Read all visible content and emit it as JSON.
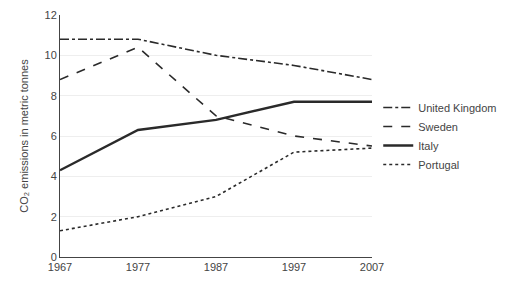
{
  "chart_data": {
    "type": "line",
    "ylabel": "CO₂ emissions in metric tonnes",
    "x": [
      1967,
      1977,
      1987,
      1997,
      2007
    ],
    "series": [
      {
        "name": "United Kingdom",
        "color": "#2a2a2a",
        "line_style": "dashdot",
        "values": [
          10.8,
          10.8,
          10.0,
          9.5,
          8.8
        ]
      },
      {
        "name": "Sweden",
        "color": "#2a2a2a",
        "line_style": "dash",
        "values": [
          8.8,
          10.4,
          7.0,
          6.0,
          5.5
        ]
      },
      {
        "name": "Italy",
        "color": "#2a2a2a",
        "line_style": "solid",
        "values": [
          4.3,
          6.3,
          6.8,
          7.7,
          7.7
        ]
      },
      {
        "name": "Portugal",
        "color": "#2a2a2a",
        "line_style": "dot",
        "values": [
          1.3,
          2.0,
          3.0,
          5.2,
          5.4
        ]
      }
    ],
    "xlim": [
      1967,
      2007
    ],
    "xticks": [
      1967,
      1977,
      1987,
      1997,
      2007
    ],
    "ylim": [
      0,
      12
    ],
    "yticks": [
      0,
      2,
      4,
      6,
      8,
      10,
      12
    ],
    "grid": "y",
    "legend": "right"
  }
}
